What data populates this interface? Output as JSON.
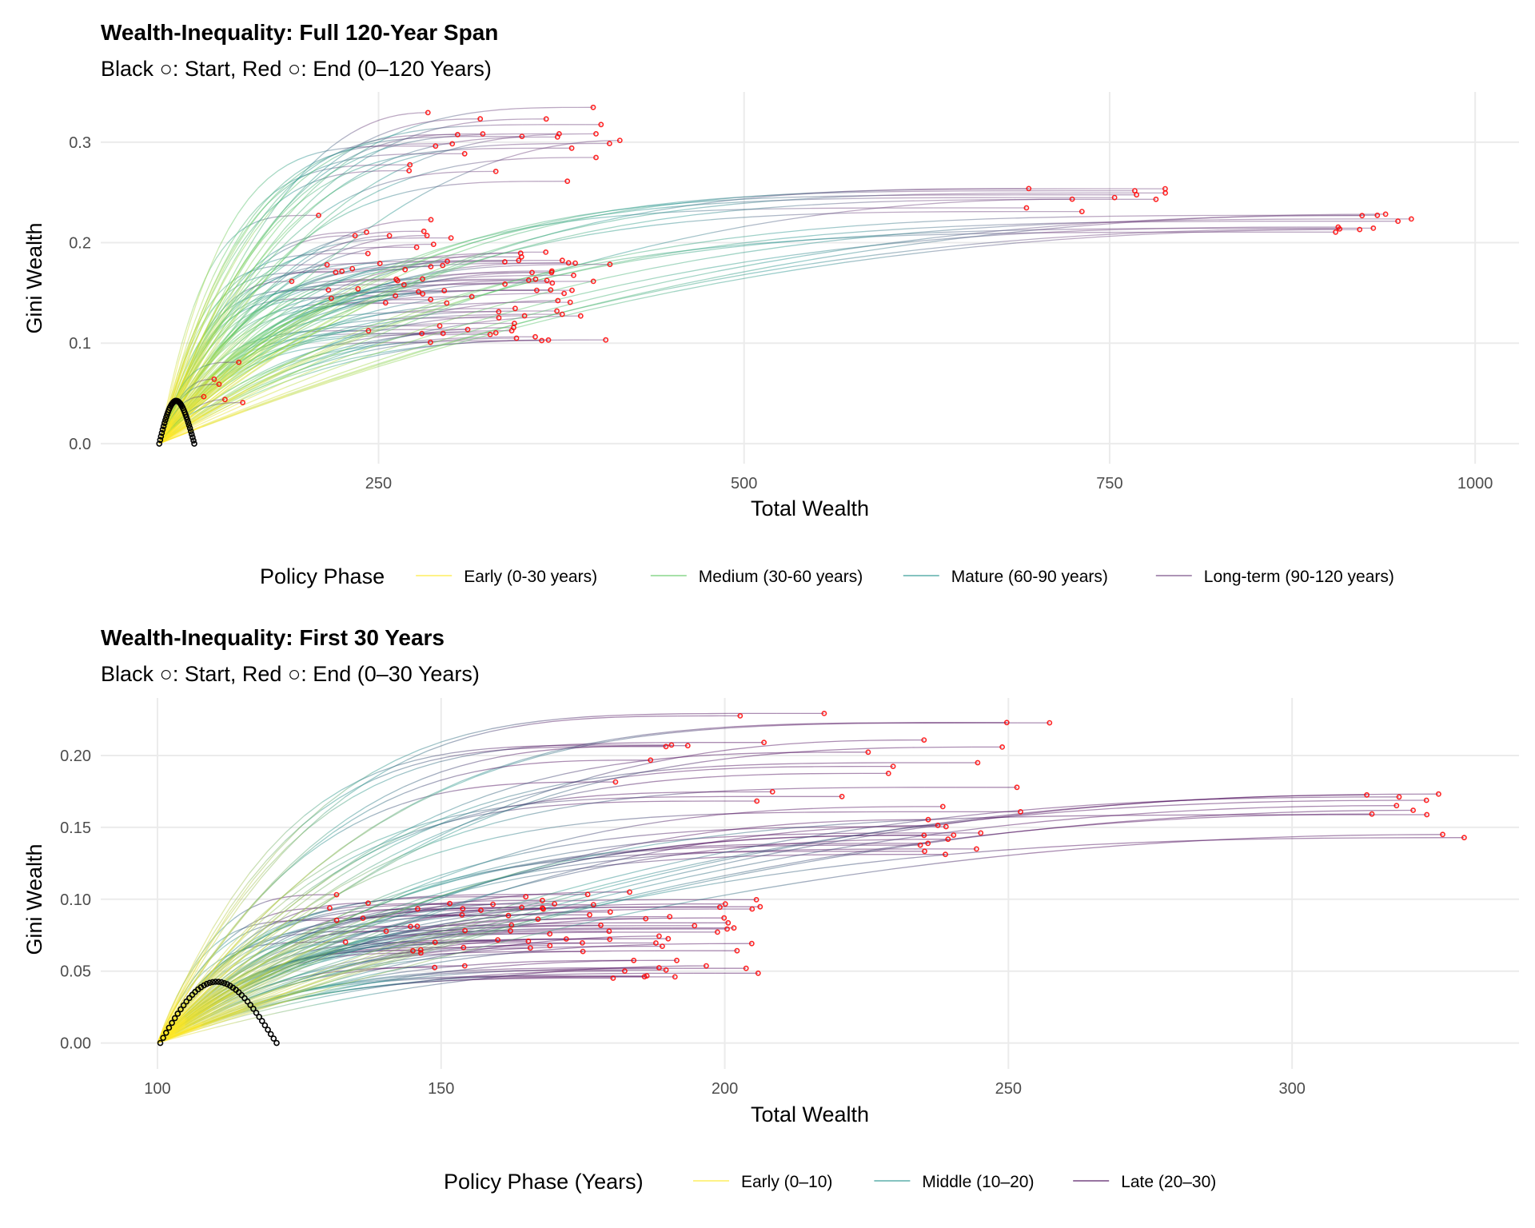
{
  "chart_data": [
    {
      "type": "line",
      "title": "Wealth-Inequality: Full 120-Year Span",
      "subtitle": "Black ○: Start, Red ○: End (0–120 Years)",
      "xlabel": "Total Wealth",
      "ylabel": "Gini Wealth",
      "xlim": [
        60,
        1030
      ],
      "ylim": [
        -0.02,
        0.35
      ],
      "xticks": [
        250,
        500,
        750,
        1000
      ],
      "yticks": [
        0.0,
        0.1,
        0.2,
        0.3
      ],
      "xtick_labels": [
        "250",
        "500",
        "750",
        "1000"
      ],
      "ytick_labels": [
        "0.0",
        "0.1",
        "0.2",
        "0.3"
      ],
      "grid": true,
      "legend": {
        "title": "Policy Phase",
        "position": "bottom",
        "entries": [
          {
            "label": "Early (0-30 years)",
            "color": "#fde725"
          },
          {
            "label": "Medium (30-60 years)",
            "color": "#5ec962"
          },
          {
            "label": "Mature (60-90 years)",
            "color": "#21918c"
          },
          {
            "label": "Long-term (90-120 years)",
            "color": "#6a3d7a"
          }
        ]
      },
      "start_marker_color": "#000000",
      "end_marker_color": "#ff0000",
      "trajectory_groups": [
        {
          "count": 28,
          "start": [
            100,
            0.0
          ],
          "end_x": [
            190,
            300
          ],
          "end_y": [
            0.13,
            0.24
          ]
        },
        {
          "count": 22,
          "start": [
            100,
            0.0
          ],
          "end_x": [
            270,
            430
          ],
          "end_y": [
            0.25,
            0.335
          ]
        },
        {
          "count": 30,
          "start": [
            100,
            0.0
          ],
          "end_x": [
            220,
            410
          ],
          "end_y": [
            0.1,
            0.2
          ]
        },
        {
          "count": 26,
          "start": [
            100,
            0.0
          ],
          "end_x": [
            330,
            385
          ],
          "end_y": [
            0.1,
            0.2
          ]
        },
        {
          "count": 10,
          "start": [
            100,
            0.0
          ],
          "end_x": [
            680,
            790
          ],
          "end_y": [
            0.23,
            0.26
          ]
        },
        {
          "count": 10,
          "start": [
            100,
            0.0
          ],
          "end_x": [
            900,
            980
          ],
          "end_y": [
            0.21,
            0.23
          ]
        },
        {
          "count": 6,
          "start": [
            100,
            0.0
          ],
          "end_x": [
            130,
            165
          ],
          "end_y": [
            0.04,
            0.09
          ]
        }
      ]
    },
    {
      "type": "line",
      "title": "Wealth-Inequality: First 30 Years",
      "subtitle": "Black ○: Start, Red ○: End (0–30 Years)",
      "xlabel": "Total Wealth",
      "ylabel": "Gini Wealth",
      "xlim": [
        90,
        340
      ],
      "ylim": [
        -0.018,
        0.24
      ],
      "xticks": [
        100,
        150,
        200,
        250,
        300
      ],
      "yticks": [
        0.0,
        0.05,
        0.1,
        0.15,
        0.2
      ],
      "xtick_labels": [
        "100",
        "150",
        "200",
        "250",
        "300"
      ],
      "ytick_labels": [
        "0.00",
        "0.05",
        "0.10",
        "0.15",
        "0.20"
      ],
      "grid": true,
      "legend": {
        "title": "Policy Phase (Years)",
        "position": "bottom",
        "entries": [
          {
            "label": "Early (0–10)",
            "color": "#fde725"
          },
          {
            "label": "Middle (10–20)",
            "color": "#21918c"
          },
          {
            "label": "Late (20–30)",
            "color": "#440154"
          }
        ]
      },
      "start_marker_color": "#000000",
      "end_marker_color": "#ff0000",
      "trajectory_groups": [
        {
          "count": 30,
          "start": [
            100,
            0.0
          ],
          "end_x": [
            130,
            180
          ],
          "end_y": [
            0.06,
            0.105
          ]
        },
        {
          "count": 30,
          "start": [
            100,
            0.0
          ],
          "end_x": [
            145,
            200
          ],
          "end_y": [
            0.045,
            0.1
          ]
        },
        {
          "count": 22,
          "start": [
            100,
            0.0
          ],
          "end_x": [
            180,
            258
          ],
          "end_y": [
            0.16,
            0.23
          ]
        },
        {
          "count": 20,
          "start": [
            100,
            0.0
          ],
          "end_x": [
            180,
            208
          ],
          "end_y": [
            0.045,
            0.11
          ]
        },
        {
          "count": 12,
          "start": [
            100,
            0.0
          ],
          "end_x": [
            232,
            246
          ],
          "end_y": [
            0.13,
            0.16
          ]
        },
        {
          "count": 10,
          "start": [
            100,
            0.0
          ],
          "end_x": [
            312,
            332
          ],
          "end_y": [
            0.14,
            0.177
          ]
        }
      ]
    }
  ]
}
